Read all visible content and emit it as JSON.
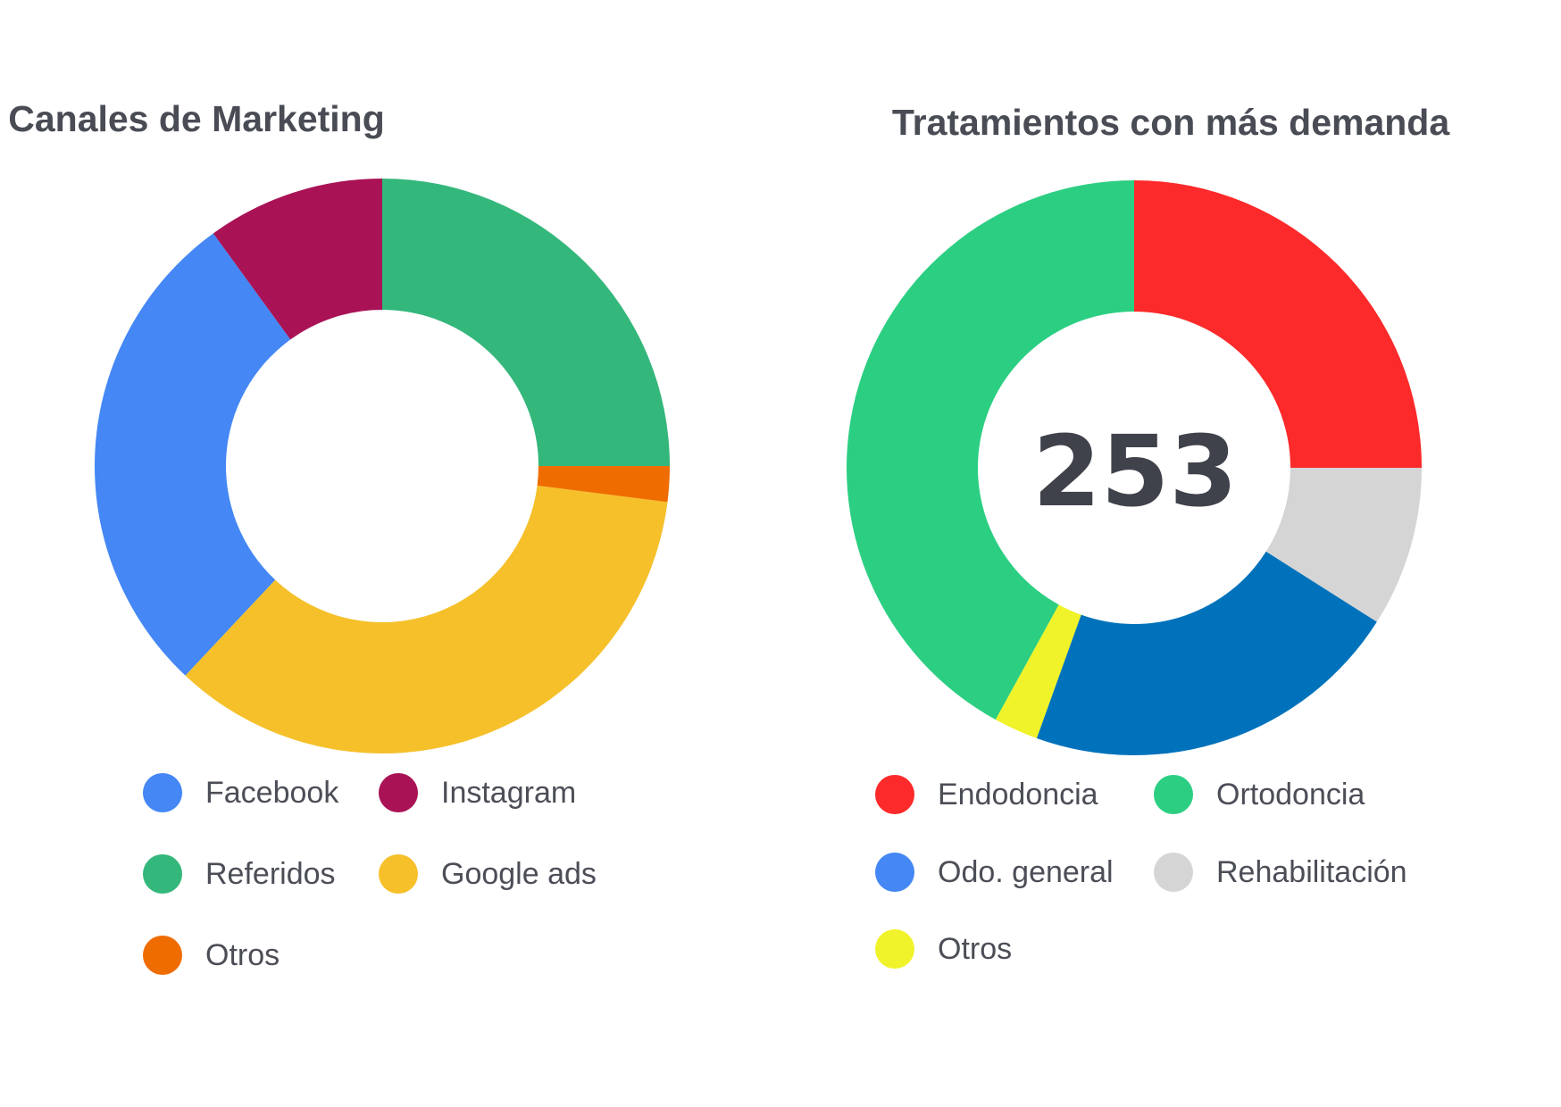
{
  "chart_data": [
    {
      "type": "pie",
      "donut": true,
      "title": "Canales de Marketing",
      "slices": [
        {
          "label": "Referidos",
          "value": 25.0,
          "color": "#34b77b"
        },
        {
          "label": "Otros",
          "value": 2.0,
          "color": "#ef6c00"
        },
        {
          "label": "Google ads",
          "value": 35.0,
          "color": "#f6c02a"
        },
        {
          "label": "Facebook",
          "value": 28.0,
          "color": "#4487f5"
        },
        {
          "label": "Instagram",
          "value": 10.0,
          "color": "#a91355"
        }
      ],
      "legend": [
        {
          "label": "Facebook",
          "color": "#4487f5"
        },
        {
          "label": "Instagram",
          "color": "#a91355"
        },
        {
          "label": "Referidos",
          "color": "#34b77b"
        },
        {
          "label": "Google ads",
          "color": "#f6c02a"
        },
        {
          "label": "Otros",
          "color": "#ef6c00"
        }
      ],
      "legend_position": "bottom"
    },
    {
      "type": "pie",
      "donut": true,
      "title": "Tratamientos con más demanda",
      "center_label": "253",
      "slices": [
        {
          "label": "Endodoncia",
          "value": 25.0,
          "color": "#fc2a2a"
        },
        {
          "label": "Rehabilitación",
          "value": 9.0,
          "color": "#d5d5d5"
        },
        {
          "label": "Odo. general",
          "value": 21.5,
          "color": "#0072bb"
        },
        {
          "label": "Otros",
          "value": 2.5,
          "color": "#f0f32a"
        },
        {
          "label": "Ortodoncia",
          "value": 42.0,
          "color": "#2ccf82"
        }
      ],
      "legend": [
        {
          "label": "Endodoncia",
          "color": "#fc2a2a"
        },
        {
          "label": "Ortodoncia",
          "color": "#2ccf82"
        },
        {
          "label": "Odo. general",
          "color": "#4487f5"
        },
        {
          "label": "Rehabilitación",
          "color": "#d5d5d5"
        },
        {
          "label": "Otros",
          "color": "#f0f32a"
        }
      ],
      "legend_position": "bottom"
    }
  ]
}
